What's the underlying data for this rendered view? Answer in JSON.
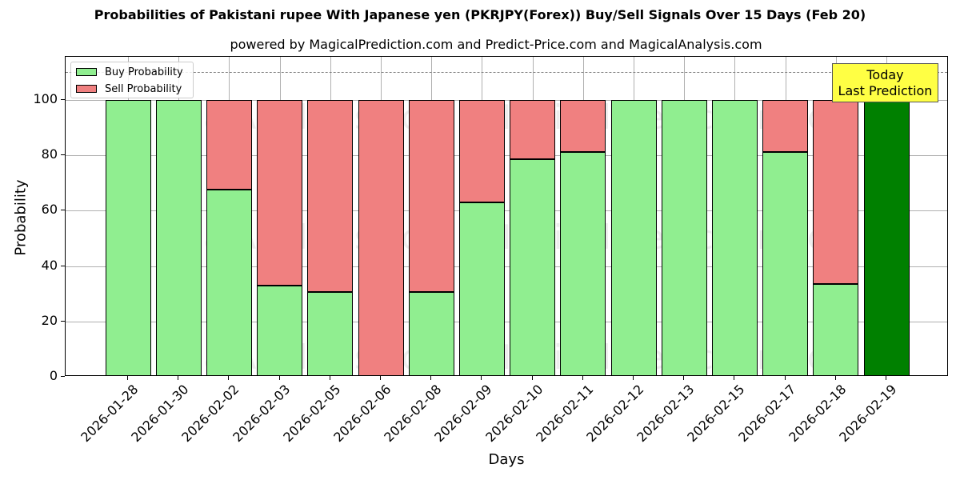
{
  "chart_data": {
    "type": "bar",
    "stacked": true,
    "title": "Probabilities of Pakistani rupee With Japanese yen (PKRJPY(Forex)) Buy/Sell Signals Over 15 Days (Feb 20)",
    "subtitle": "powered by MagicalPrediction.com and Predict-Price.com and MagicalAnalysis.com",
    "xlabel": "Days",
    "ylabel": "Probability",
    "ylim": [
      0,
      115.6
    ],
    "yticks": [
      "0",
      "20",
      "40",
      "60",
      "80",
      "100"
    ],
    "grid": true,
    "legend_position": "upper left",
    "categories": [
      "2026-01-28",
      "2026-01-30",
      "2026-02-02",
      "2026-02-03",
      "2026-02-05",
      "2026-02-06",
      "2026-02-08",
      "2026-02-09",
      "2026-02-10",
      "2026-02-11",
      "2026-02-12",
      "2026-02-13",
      "2026-02-15",
      "2026-02-17",
      "2026-02-18",
      "2026-02-19"
    ],
    "series": [
      {
        "name": "Buy Probability",
        "color": "#90ee90",
        "values": [
          100,
          100,
          67.6,
          32.9,
          30.5,
          0,
          30.5,
          62.9,
          78.5,
          81.1,
          100,
          100,
          100,
          81.1,
          33.5,
          100
        ]
      },
      {
        "name": "Sell Probability",
        "color": "#f08080",
        "values": [
          0,
          0,
          32.4,
          67.1,
          69.5,
          100,
          69.5,
          37.1,
          21.5,
          18.9,
          0,
          0,
          0,
          18.9,
          66.5,
          0
        ]
      }
    ],
    "highlight": {
      "category": "2026-02-19",
      "color": "#008000",
      "label": "Today\nLast Prediction"
    },
    "reference_line": {
      "y": 110,
      "style": "dashed",
      "color": "#808080"
    },
    "annotation": {
      "line1": "Today",
      "line2": "Last Prediction",
      "background": "#ffff44"
    },
    "watermarks": [
      "MagicalAnalysis.com",
      "MagicalPrediction.com"
    ]
  }
}
